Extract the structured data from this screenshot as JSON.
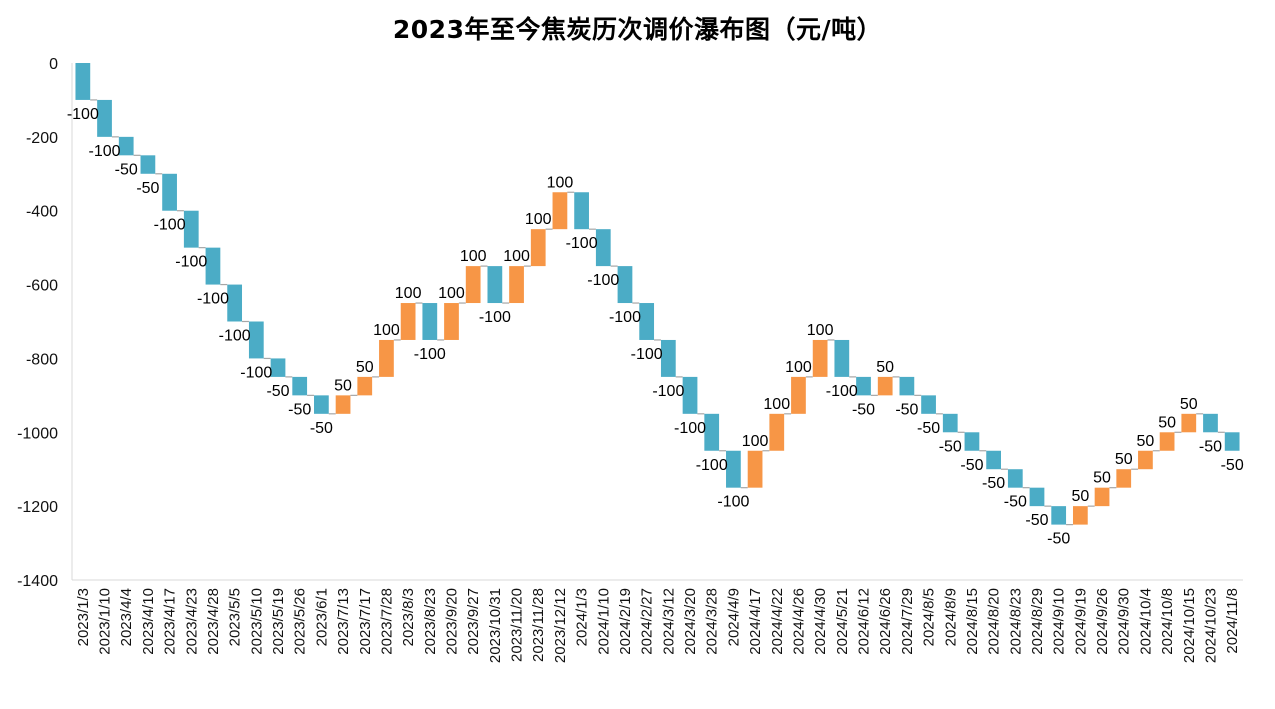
{
  "chart_data": {
    "type": "bar",
    "subtype": "waterfall",
    "title": "2023年至今焦炭历次调价瀑布图（元/吨）",
    "xlabel": "",
    "ylabel": "",
    "ylim": [
      -1400,
      0
    ],
    "yticks": [
      "0",
      "-200",
      "-400",
      "-600",
      "-800",
      "-1000",
      "-1200",
      "-1400"
    ],
    "grid": false,
    "legend": "none",
    "colors": {
      "decrease": "#4bacc6",
      "increase": "#f79646",
      "connector": "#a6a6a6",
      "axis": "#d9d9d9"
    },
    "categories": [
      "2023/1/3",
      "2023/1/10",
      "2023/4/4",
      "2023/4/10",
      "2023/4/17",
      "2023/4/23",
      "2023/4/28",
      "2023/5/5",
      "2023/5/10",
      "2023/5/19",
      "2023/5/26",
      "2023/6/1",
      "2023/7/13",
      "2023/7/17",
      "2023/7/28",
      "2023/8/3",
      "2023/8/23",
      "2023/9/20",
      "2023/9/27",
      "2023/10/31",
      "2023/11/20",
      "2023/11/28",
      "2023/12/12",
      "2024/1/3",
      "2024/1/10",
      "2024/2/19",
      "2024/2/27",
      "2024/3/12",
      "2024/3/20",
      "2024/3/28",
      "2024/4/9",
      "2024/4/17",
      "2024/4/22",
      "2024/4/26",
      "2024/4/30",
      "2024/5/21",
      "2024/6/12",
      "2024/6/26",
      "2024/7/29",
      "2024/8/5",
      "2024/8/9",
      "2024/8/15",
      "2024/8/20",
      "2024/8/23",
      "2024/8/29",
      "2024/9/10",
      "2024/9/19",
      "2024/9/26",
      "2024/9/30",
      "2024/10/4",
      "2024/10/8",
      "2024/10/15",
      "2024/10/23",
      "2024/11/8"
    ],
    "values": [
      -100,
      -100,
      -50,
      -50,
      -100,
      -100,
      -100,
      -100,
      -100,
      -50,
      -50,
      -50,
      50,
      50,
      100,
      100,
      -100,
      100,
      100,
      -100,
      100,
      100,
      100,
      -100,
      -100,
      -100,
      -100,
      -100,
      -100,
      -100,
      -100,
      100,
      100,
      100,
      100,
      -100,
      -50,
      50,
      -50,
      -50,
      -50,
      -50,
      -50,
      -50,
      -50,
      -50,
      50,
      50,
      50,
      50,
      50,
      50,
      -50,
      -50
    ],
    "data_labels": [
      "-100",
      "-100",
      "-50",
      "-50",
      "-100",
      "-100",
      "-100",
      "-100",
      "-100",
      "-50",
      "-50",
      "-50",
      "50",
      "50",
      "100",
      "100",
      "-100",
      "100",
      "100",
      "-100",
      "100",
      "100",
      "100",
      "-100",
      "-100",
      "-100",
      "-100",
      "-100",
      "-100",
      "-100",
      "-100",
      "100",
      "100",
      "100",
      "100",
      "-100",
      "-50",
      "50",
      "-50",
      "-50",
      "-50",
      "-50",
      "-50",
      "-50",
      "-50",
      "-50",
      "50",
      "50",
      "50",
      "50",
      "50",
      "50",
      "-50",
      "-50"
    ]
  }
}
